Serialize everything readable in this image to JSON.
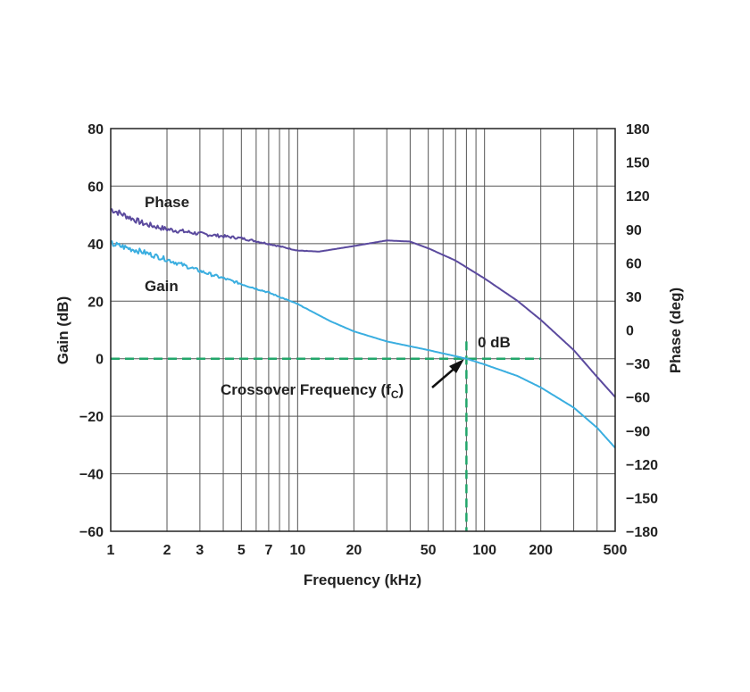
{
  "chart_data": {
    "type": "line",
    "xlabel": "Frequency (kHz)",
    "ylabel_left": "Gain (dB)",
    "ylabel_right": "Phase (deg)",
    "x_scale": "log",
    "xlim": [
      1,
      500
    ],
    "ylim_left": [
      -60,
      80
    ],
    "ylim_right": [
      -180,
      180
    ],
    "x_ticks": [
      1,
      2,
      3,
      5,
      7,
      10,
      20,
      50,
      100,
      200,
      500
    ],
    "x_tick_labels": [
      "1",
      "2",
      "3",
      "5",
      "7",
      "10",
      "20",
      "50",
      "100",
      "200",
      "500"
    ],
    "y_left_ticks": [
      80,
      60,
      40,
      20,
      0,
      -20,
      -40,
      -60
    ],
    "y_left_tick_labels": [
      "80",
      "60",
      "40",
      "20",
      "0",
      "−20",
      "−40",
      "−60"
    ],
    "y_right_ticks": [
      180,
      150,
      120,
      90,
      60,
      30,
      0,
      -30,
      -60,
      -90,
      -120,
      -150,
      -180
    ],
    "y_right_tick_labels": [
      "180",
      "150",
      "120",
      "90",
      "60",
      "30",
      "0",
      "−30",
      "−60",
      "−90",
      "−120",
      "−150",
      "−180"
    ],
    "grid": true,
    "series": [
      {
        "name": "Phase",
        "axis": "right",
        "color": "#5b4a9e",
        "x": [
          1,
          1.5,
          2,
          3,
          5,
          7,
          10,
          13,
          20,
          30,
          40,
          50,
          70,
          100,
          150,
          200,
          300,
          400,
          500
        ],
        "y": [
          108,
          95,
          90,
          86,
          82,
          77,
          71,
          70,
          75,
          80,
          79,
          73,
          62,
          46,
          26,
          9,
          -18,
          -42,
          -60
        ]
      },
      {
        "name": "Gain",
        "axis": "left",
        "color": "#3aaee0",
        "x": [
          1,
          1.5,
          2,
          3,
          5,
          7,
          10,
          15,
          20,
          30,
          50,
          80,
          100,
          150,
          200,
          300,
          400,
          500
        ],
        "y": [
          40,
          37,
          34.5,
          30.5,
          26,
          23,
          19,
          13,
          9.5,
          6,
          3,
          0,
          -2,
          -6,
          -10,
          -17,
          -24,
          -31
        ]
      }
    ],
    "reference_lines": [
      {
        "type": "horizontal",
        "axis": "left",
        "value": 0,
        "color": "#21a66a",
        "style": "dashed"
      },
      {
        "type": "vertical",
        "value": 80,
        "color": "#21a66a",
        "style": "dashed"
      }
    ],
    "annotations": {
      "phase_label": "Phase",
      "gain_label": "Gain",
      "zero_db_label": "0 dB",
      "crossover_label": "Crossover Frequency (f",
      "crossover_sub": "C",
      "crossover_close": ")"
    }
  }
}
